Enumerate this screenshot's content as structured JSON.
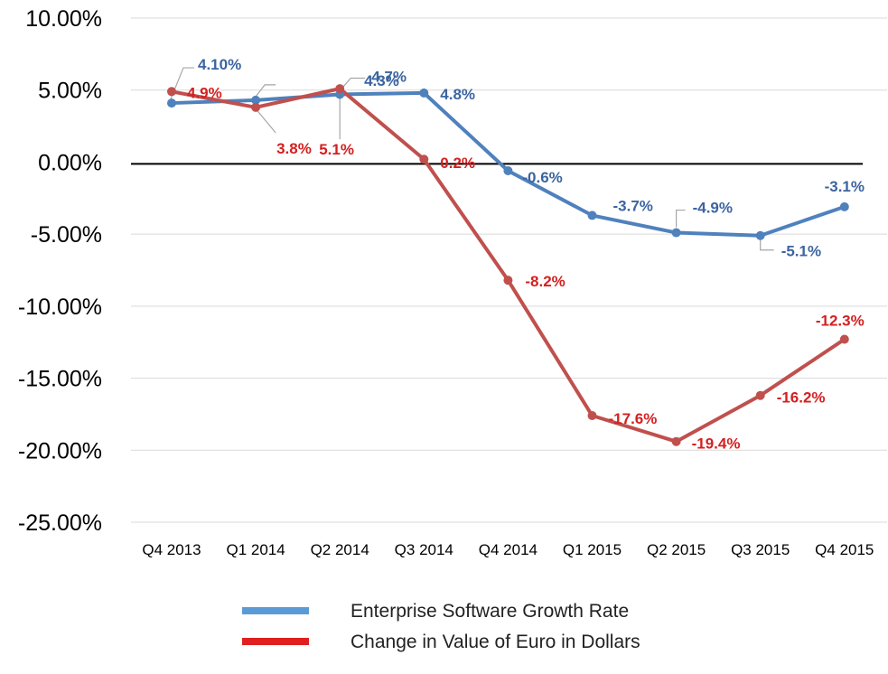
{
  "chart_data": {
    "type": "line",
    "title": "",
    "xlabel": "",
    "ylabel": "",
    "categories": [
      "Q4 2013",
      "Q1 2014",
      "Q2 2014",
      "Q3 2014",
      "Q4 2014",
      "Q1 2015",
      "Q2 2015",
      "Q3 2015",
      "Q4 2015"
    ],
    "ylim": [
      -0.25,
      0.1
    ],
    "yticks": [
      {
        "value": 0.1,
        "label": "10.00%"
      },
      {
        "value": 0.05,
        "label": "5.00%"
      },
      {
        "value": 0.0,
        "label": "0.00%"
      },
      {
        "value": -0.05,
        "label": "-5.00%"
      },
      {
        "value": -0.1,
        "label": "-10.00%"
      },
      {
        "value": -0.15,
        "label": "-15.00%"
      },
      {
        "value": -0.2,
        "label": "-20.00%"
      },
      {
        "value": -0.25,
        "label": "-25.00%"
      }
    ],
    "grid": true,
    "legend_position": "bottom",
    "series": [
      {
        "name": "Enterprise Software Growth Rate",
        "color": "#4F81BD",
        "label_color": "#3B64A0",
        "legend_color": "#5B9BD5",
        "values": [
          0.041,
          0.043,
          0.047,
          0.048,
          -0.006,
          -0.037,
          -0.049,
          -0.051,
          -0.031
        ],
        "labels": [
          "4.10%",
          "4.3%",
          "4.7%",
          "4.8%",
          "-0.6%",
          "-3.7%",
          "-4.9%",
          "-5.1%",
          "-3.1%"
        ]
      },
      {
        "name": "Change in Value of Euro in Dollars",
        "color": "#C0504D",
        "label_color": "#D42020",
        "legend_color": "#E02020",
        "values": [
          0.049,
          0.038,
          0.051,
          0.002,
          -0.082,
          -0.176,
          -0.194,
          -0.162,
          -0.123
        ],
        "labels": [
          "4.9%",
          "3.8%",
          "5.1%",
          "0.2%",
          "-8.2%",
          "-17.6%",
          "-19.4%",
          "-16.2%",
          "-12.3%"
        ]
      }
    ]
  }
}
